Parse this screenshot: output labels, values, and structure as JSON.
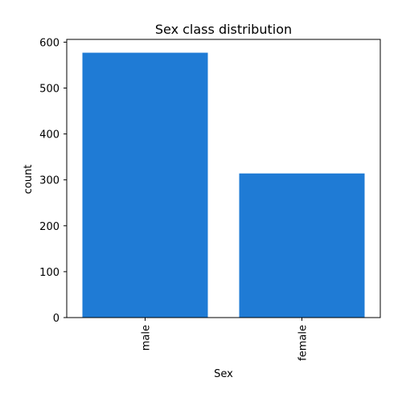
{
  "chart_data": {
    "type": "bar",
    "title": "Sex class distribution",
    "xlabel": "Sex",
    "ylabel": "count",
    "categories": [
      "male",
      "female"
    ],
    "values": [
      577,
      314
    ],
    "ylim": [
      0,
      606
    ],
    "yticks": [
      0,
      100,
      200,
      300,
      400,
      500,
      600
    ],
    "ytick_labels": [
      "0",
      "100",
      "200",
      "300",
      "400",
      "500",
      "600"
    ],
    "xtick_rotation": "vertical",
    "grid": false,
    "legend": "none",
    "bar_color": "#1f7bd5"
  }
}
